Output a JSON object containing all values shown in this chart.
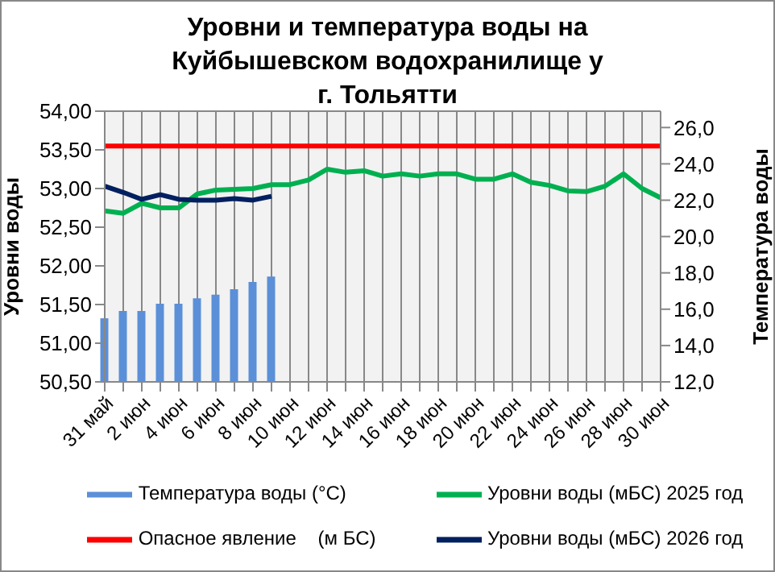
{
  "chart_data": {
    "type": "line",
    "title": "Уровни  и температура  воды на Куйбышевском водохранилище у г. Тольятти",
    "ylabel": "Уровни воды",
    "y2label": "Температура воды",
    "categories": [
      "31 май",
      null,
      "2 июн",
      null,
      "4 июн",
      null,
      "6 июн",
      null,
      "8 июн",
      null,
      "10 июн",
      null,
      "12 июн",
      null,
      "14 июн",
      null,
      "16 июн",
      null,
      "18 июн",
      null,
      "20 июн",
      null,
      "22 июн",
      null,
      "24 июн",
      null,
      "26 июн",
      null,
      "28 июн",
      null,
      "30 июн"
    ],
    "series": [
      {
        "name": "Температура воды (°С)",
        "type": "bar",
        "axis": "y2",
        "color": "#5b8fd8",
        "values": [
          15.5,
          15.9,
          15.9,
          16.3,
          16.3,
          16.6,
          16.8,
          17.1,
          17.5,
          17.8,
          null,
          null,
          null,
          null,
          null,
          null,
          null,
          null,
          null,
          null,
          null,
          null,
          null,
          null,
          null,
          null,
          null,
          null,
          null,
          null,
          null
        ]
      },
      {
        "name": "Уровни воды (мБС) 2025 год",
        "color": "#00b050",
        "values": [
          52.71,
          52.68,
          52.81,
          52.75,
          52.75,
          52.93,
          52.98,
          52.99,
          53.0,
          53.05,
          53.05,
          53.11,
          53.25,
          53.21,
          53.23,
          53.16,
          53.19,
          53.16,
          53.19,
          53.19,
          53.12,
          53.12,
          53.19,
          53.08,
          53.04,
          52.97,
          52.96,
          53.03,
          53.19,
          53.0,
          52.88
        ]
      },
      {
        "name": "Опасное явление    (м БС)",
        "color": "#ff0000",
        "values": [
          53.55,
          53.55,
          53.55,
          53.55,
          53.55,
          53.55,
          53.55,
          53.55,
          53.55,
          53.55,
          53.55,
          53.55,
          53.55,
          53.55,
          53.55,
          53.55,
          53.55,
          53.55,
          53.55,
          53.55,
          53.55,
          53.55,
          53.55,
          53.55,
          53.55,
          53.55,
          53.55,
          53.55,
          53.55,
          53.55,
          53.55
        ]
      },
      {
        "name": "Уровни воды (мБС) 2026 год",
        "color": "#002060",
        "values": [
          53.03,
          52.95,
          52.86,
          52.92,
          52.86,
          52.85,
          52.85,
          52.87,
          52.85,
          52.9,
          null,
          null,
          null,
          null,
          null,
          null,
          null,
          null,
          null,
          null,
          null,
          null,
          null,
          null,
          null,
          null,
          null,
          null,
          null,
          null,
          null
        ]
      }
    ],
    "ylim": [
      50.5,
      54
    ],
    "yticks": [
      {
        "value": 50.5,
        "label": "50,50"
      },
      {
        "value": 51,
        "label": "51,00"
      },
      {
        "value": 51.5,
        "label": "51,50"
      },
      {
        "value": 52,
        "label": "52,00"
      },
      {
        "value": 52.5,
        "label": "52,50"
      },
      {
        "value": 53,
        "label": "53,00"
      },
      {
        "value": 53.5,
        "label": "53,50"
      },
      {
        "value": 54,
        "label": "54,00"
      }
    ],
    "y2lim": [
      12,
      26.9
    ],
    "y2ticks": [
      {
        "value": 12,
        "label": "12,0"
      },
      {
        "value": 14,
        "label": "14,0"
      },
      {
        "value": 16,
        "label": "16,0"
      },
      {
        "value": 18,
        "label": "18,0"
      },
      {
        "value": 20,
        "label": "20,0"
      },
      {
        "value": 22,
        "label": "22,0"
      },
      {
        "value": 24,
        "label": "24,0"
      },
      {
        "value": 26,
        "label": "26,0"
      }
    ],
    "grid": true,
    "legend": "bottom",
    "marker": "none"
  }
}
